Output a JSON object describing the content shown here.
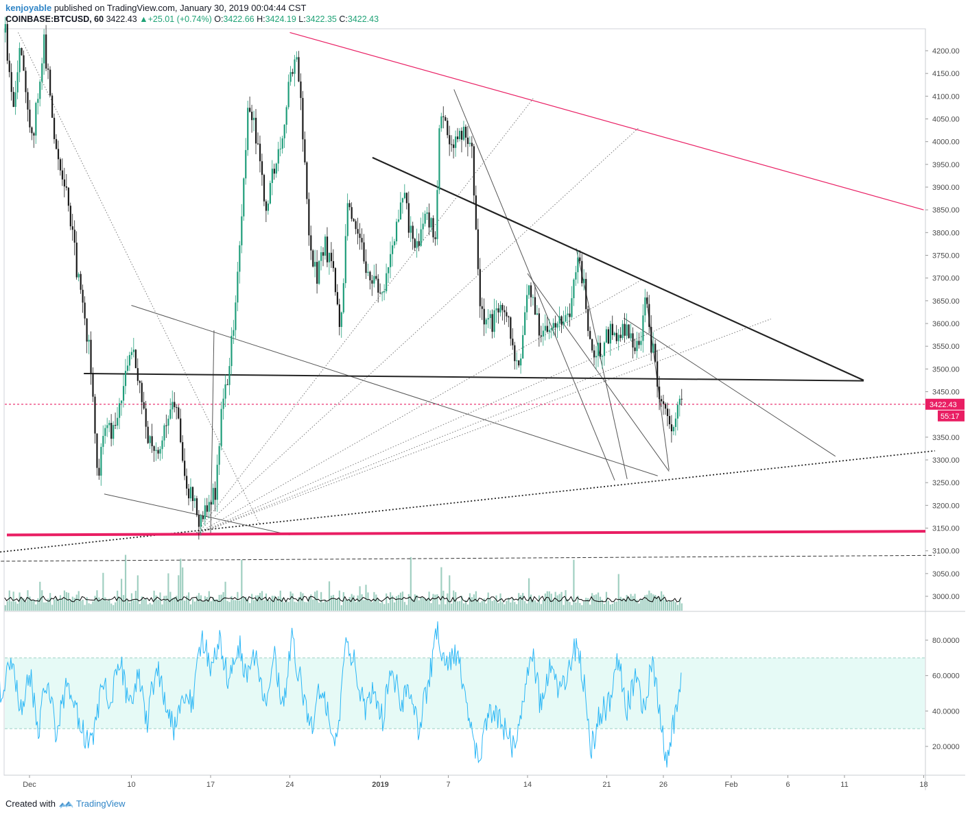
{
  "header": {
    "user": "kenjoyable",
    "published_text": "published on TradingView.com, January 30, 2019 00:04:44 CST",
    "symbol": "COINBASE:BTCUSD, 60",
    "last": "3422.43",
    "change": "+25.01 (+0.74%)",
    "o_label": "O:",
    "o_value": "3422.66",
    "h_label": "H:",
    "h_value": "3424.19",
    "l_label": "L:",
    "l_value": "3422.35",
    "c_label": "C:",
    "c_value": "3422.43"
  },
  "footer": {
    "created_with": "Created with",
    "brand": "TradingView"
  },
  "colors": {
    "up": "#1f9d7a",
    "pink": "#e91e63",
    "rsi_line": "#29b6f6",
    "rsi_band": "#e6faf6",
    "volume": "#8fc7b6"
  },
  "chart_data": [
    {
      "type": "candlestick",
      "symbol": "COINBASE:BTCUSD",
      "interval": "60",
      "ylim": [
        2970,
        4250
      ],
      "price_ticks": [
        "4200.00",
        "4150.00",
        "4100.00",
        "4050.00",
        "4000.00",
        "3950.00",
        "3900.00",
        "3850.00",
        "3800.00",
        "3750.00",
        "3700.00",
        "3650.00",
        "3600.00",
        "3550.00",
        "3500.00",
        "3450.00",
        "3350.00",
        "3300.00",
        "3250.00",
        "3200.00",
        "3150.00",
        "3100.00",
        "3050.00",
        "3000.00"
      ],
      "x_ticks": [
        {
          "label": "Dec",
          "day": 0
        },
        {
          "label": "10",
          "day": 9
        },
        {
          "label": "17",
          "day": 16
        },
        {
          "label": "24",
          "day": 23
        },
        {
          "label": "2019",
          "day": 31,
          "bold": true
        },
        {
          "label": "7",
          "day": 37
        },
        {
          "label": "14",
          "day": 44
        },
        {
          "label": "21",
          "day": 51
        },
        {
          "label": "26",
          "day": 56
        },
        {
          "label": "Feb",
          "day": 62
        },
        {
          "label": "6",
          "day": 67
        },
        {
          "label": "11",
          "day": 72
        },
        {
          "label": "18",
          "day": 79
        }
      ],
      "last_price_label": "3422.43",
      "countdown_label": "55:17",
      "last_price": 3422.43,
      "path_points": [
        [
          -2.2,
          4240
        ],
        [
          -1.5,
          4050
        ],
        [
          -0.9,
          4230
        ],
        [
          0.2,
          4000
        ],
        [
          1.2,
          4220
        ],
        [
          2.2,
          4000
        ],
        [
          3.2,
          3900
        ],
        [
          4.2,
          3700
        ],
        [
          5.2,
          3550
        ],
        [
          6.0,
          3250
        ],
        [
          6.6,
          3380
        ],
        [
          7.3,
          3350
        ],
        [
          8.2,
          3450
        ],
        [
          9.0,
          3560
        ],
        [
          9.8,
          3450
        ],
        [
          10.4,
          3350
        ],
        [
          11.0,
          3300
        ],
        [
          11.8,
          3360
        ],
        [
          12.4,
          3430
        ],
        [
          13.0,
          3400
        ],
        [
          13.8,
          3250
        ],
        [
          14.6,
          3200
        ],
        [
          15.0,
          3150
        ],
        [
          15.6,
          3200
        ],
        [
          16.3,
          3220
        ],
        [
          16.8,
          3380
        ],
        [
          17.4,
          3480
        ],
        [
          18.0,
          3600
        ],
        [
          18.6,
          3800
        ],
        [
          19.3,
          4100
        ],
        [
          20.0,
          4000
        ],
        [
          20.8,
          3850
        ],
        [
          21.6,
          3950
        ],
        [
          22.3,
          4000
        ],
        [
          23.0,
          4150
        ],
        [
          23.5,
          4210
        ],
        [
          24.0,
          4050
        ],
        [
          24.6,
          3800
        ],
        [
          25.3,
          3700
        ],
        [
          26.0,
          3780
        ],
        [
          26.8,
          3700
        ],
        [
          27.4,
          3570
        ],
        [
          28.0,
          3850
        ],
        [
          28.7,
          3800
        ],
        [
          29.4,
          3750
        ],
        [
          30.2,
          3700
        ],
        [
          31.0,
          3650
        ],
        [
          31.7,
          3750
        ],
        [
          32.3,
          3800
        ],
        [
          33.0,
          3880
        ],
        [
          33.6,
          3800
        ],
        [
          34.2,
          3780
        ],
        [
          35.0,
          3830
        ],
        [
          35.8,
          3800
        ],
        [
          36.2,
          4050
        ],
        [
          36.8,
          4020
        ],
        [
          37.6,
          4000
        ],
        [
          38.2,
          4030
        ],
        [
          39.0,
          4000
        ],
        [
          39.4,
          3800
        ],
        [
          39.8,
          3620
        ],
        [
          40.8,
          3600
        ],
        [
          41.6,
          3630
        ],
        [
          42.2,
          3600
        ],
        [
          42.9,
          3510
        ],
        [
          43.5,
          3550
        ],
        [
          44.0,
          3690
        ],
        [
          44.6,
          3620
        ],
        [
          45.2,
          3580
        ],
        [
          46.0,
          3600
        ],
        [
          46.8,
          3620
        ],
        [
          47.6,
          3610
        ],
        [
          48.3,
          3730
        ],
        [
          48.9,
          3700
        ],
        [
          49.4,
          3550
        ],
        [
          50.0,
          3530
        ],
        [
          50.8,
          3560
        ],
        [
          51.4,
          3590
        ],
        [
          52.0,
          3570
        ],
        [
          52.6,
          3590
        ],
        [
          53.2,
          3560
        ],
        [
          53.9,
          3560
        ],
        [
          54.4,
          3650
        ],
        [
          54.8,
          3560
        ],
        [
          55.3,
          3510
        ],
        [
          55.6,
          3420
        ],
        [
          56.2,
          3390
        ],
        [
          56.7,
          3350
        ],
        [
          57.2,
          3410
        ],
        [
          57.6,
          3422
        ]
      ],
      "drawings": {
        "support_horizontal": 3135,
        "pink_resistance": [
          [
            23.0,
            4240
          ],
          [
            79.0,
            3850
          ]
        ],
        "black_descending": [
          [
            30.3,
            3965
          ],
          [
            73.7,
            3475
          ]
        ],
        "black_horizontal": [
          [
            4.8,
            3490
          ],
          [
            73.7,
            3474
          ]
        ],
        "dotted_support": [
          [
            -3.5,
            3095
          ],
          [
            80.0,
            3320
          ]
        ],
        "dashed_line": [
          [
            -3.5,
            3077
          ],
          [
            80.0,
            3090
          ]
        ]
      }
    },
    {
      "type": "line",
      "indicator": "RSI",
      "ylim": [
        5,
        95
      ],
      "ticks": [
        "80.0000",
        "60.0000",
        "40.0000",
        "20.0000"
      ],
      "band": [
        30,
        70
      ],
      "path_points": [
        [
          -3.0,
          65
        ],
        [
          -2.4,
          45
        ],
        [
          -1.6,
          72
        ],
        [
          -0.8,
          40
        ],
        [
          0.0,
          62
        ],
        [
          0.8,
          30
        ],
        [
          1.6,
          60
        ],
        [
          2.4,
          25
        ],
        [
          3.2,
          55
        ],
        [
          4.0,
          40
        ],
        [
          4.8,
          28
        ],
        [
          5.6,
          20
        ],
        [
          6.4,
          55
        ],
        [
          7.2,
          45
        ],
        [
          8.0,
          70
        ],
        [
          8.8,
          40
        ],
        [
          9.6,
          60
        ],
        [
          10.4,
          35
        ],
        [
          11.2,
          65
        ],
        [
          12.0,
          48
        ],
        [
          12.8,
          30
        ],
        [
          13.6,
          52
        ],
        [
          14.4,
          45
        ],
        [
          15.2,
          82
        ],
        [
          16.0,
          65
        ],
        [
          16.8,
          78
        ],
        [
          17.6,
          55
        ],
        [
          18.4,
          80
        ],
        [
          19.2,
          60
        ],
        [
          20.0,
          70
        ],
        [
          20.8,
          45
        ],
        [
          21.6,
          75
        ],
        [
          22.4,
          40
        ],
        [
          23.2,
          80
        ],
        [
          24.0,
          55
        ],
        [
          24.8,
          30
        ],
        [
          25.6,
          50
        ],
        [
          26.4,
          40
        ],
        [
          27.2,
          22
        ],
        [
          28.0,
          80
        ],
        [
          28.8,
          65
        ],
        [
          29.6,
          40
        ],
        [
          30.4,
          55
        ],
        [
          31.2,
          35
        ],
        [
          32.0,
          65
        ],
        [
          32.8,
          45
        ],
        [
          33.6,
          50
        ],
        [
          34.4,
          30
        ],
        [
          35.2,
          55
        ],
        [
          36.0,
          85
        ],
        [
          36.8,
          65
        ],
        [
          37.6,
          75
        ],
        [
          38.4,
          55
        ],
        [
          39.2,
          25
        ],
        [
          39.6,
          10
        ],
        [
          40.4,
          35
        ],
        [
          41.2,
          40
        ],
        [
          42.0,
          30
        ],
        [
          42.8,
          18
        ],
        [
          43.6,
          45
        ],
        [
          44.4,
          75
        ],
        [
          45.2,
          40
        ],
        [
          46.0,
          65
        ],
        [
          46.8,
          50
        ],
        [
          47.6,
          60
        ],
        [
          48.4,
          80
        ],
        [
          49.2,
          45
        ],
        [
          49.6,
          18
        ],
        [
          50.4,
          38
        ],
        [
          51.2,
          45
        ],
        [
          52.0,
          68
        ],
        [
          52.8,
          42
        ],
        [
          53.6,
          60
        ],
        [
          54.4,
          35
        ],
        [
          55.0,
          72
        ],
        [
          55.6,
          45
        ],
        [
          56.2,
          12
        ],
        [
          56.8,
          30
        ],
        [
          57.2,
          40
        ],
        [
          57.6,
          59
        ]
      ]
    }
  ]
}
